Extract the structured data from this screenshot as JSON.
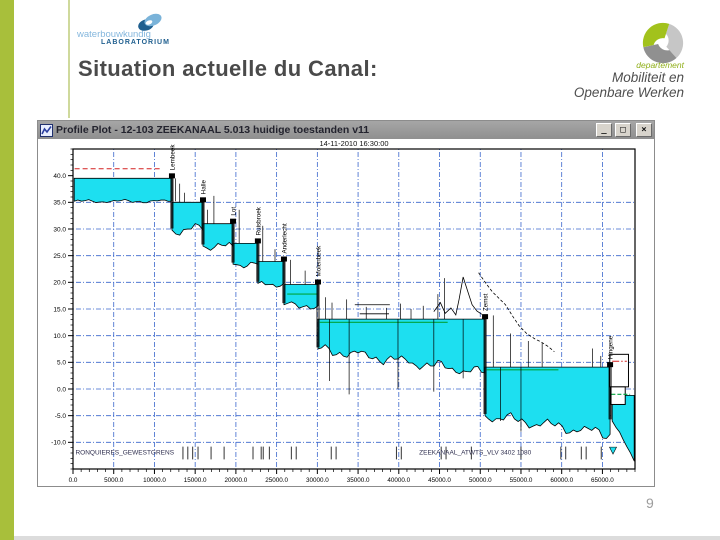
{
  "slide": {
    "title": "Situation actuelle du Canal:",
    "page_number": "9",
    "accent_color": "#a8bf3b"
  },
  "logo_left": {
    "line1": "waterbouwkundig",
    "line2": "LABORATORIUM"
  },
  "logo_right": {
    "line1": "departement",
    "line2": "Mobiliteit en",
    "line3": "Openbare Werken"
  },
  "window": {
    "title": "Profile Plot - 12-103 ZEEKANAAL 5.013 huidige toestanden v11",
    "buttons": {
      "minimize": "_",
      "maximize": "□",
      "close": "×"
    }
  },
  "chart_data": {
    "type": "area",
    "title": "14-11-2010 16:30:00",
    "xlabel": "",
    "ylabel": "",
    "x_range": [
      0,
      69000
    ],
    "y_range": [
      -15,
      45
    ],
    "x_ticks": [
      0,
      5000,
      10000,
      15000,
      20000,
      25000,
      30000,
      35000,
      40000,
      45000,
      50000,
      55000,
      60000,
      65000
    ],
    "y_ticks": [
      40,
      35,
      30,
      25,
      20,
      15,
      10,
      5,
      0,
      -5,
      -10
    ],
    "grid": true,
    "colors": {
      "water": "#1ddff0",
      "grid": "#3a66cc",
      "red": "#d42020",
      "green": "#00a33c",
      "labels": "#2e2e4e"
    },
    "reaches": [
      {
        "x1": 150,
        "x2": 12150,
        "surface": 39.5,
        "bed1": 35.2,
        "bed2": 35.2,
        "rough": 0.4
      },
      {
        "x1": 12150,
        "x2": 15960,
        "surface": 35.0,
        "bed1": 29.8,
        "bed2": 29.8,
        "rough": 1.4
      },
      {
        "x1": 15960,
        "x2": 19650,
        "surface": 31.0,
        "bed1": 26.8,
        "bed2": 26.8,
        "rough": 1.0
      },
      {
        "x1": 19650,
        "x2": 22700,
        "surface": 27.3,
        "bed1": 23.4,
        "bed2": 23.4,
        "rough": 0.8
      },
      {
        "x1": 22700,
        "x2": 25900,
        "surface": 23.9,
        "bed1": 19.8,
        "bed2": 19.8,
        "rough": 0.9
      },
      {
        "x1": 25900,
        "x2": 30080,
        "surface": 19.6,
        "bed1": 15.8,
        "bed2": 15.6,
        "rough": 1.0
      },
      {
        "x1": 30080,
        "x2": 50590,
        "surface": 13.1,
        "bed1": 7.5,
        "bed2": 3.0,
        "rough": 1.3
      },
      {
        "x1": 50590,
        "x2": 65940,
        "surface": 4.1,
        "bed1": -5.0,
        "bed2": -8.5,
        "rough": 1.4
      },
      {
        "x1": 66200,
        "x2": 68900,
        "surface": -1.2,
        "bed1": -6.0,
        "bed2": -13.5,
        "rough": 0.6
      }
    ],
    "locks": [
      {
        "x": 12150,
        "label": "Lembeek"
      },
      {
        "x": 15960,
        "label": "Halle"
      },
      {
        "x": 19650,
        "label": "Lot"
      },
      {
        "x": 22700,
        "label": "Ruisbroek"
      },
      {
        "x": 25900,
        "label": "Anderlecht"
      },
      {
        "x": 30080,
        "label": "Molenbeek"
      },
      {
        "x": 50590,
        "label": "Zemst"
      },
      {
        "x": 65940,
        "label": "Hingene"
      }
    ],
    "red_lines": [
      {
        "x1": 200,
        "x2": 10700,
        "y": 41.3,
        "dash": "5,3"
      },
      {
        "x1": 66200,
        "x2": 68000,
        "y": 5.2,
        "dash": "7,2,1.5,2"
      }
    ],
    "green_lines": [
      {
        "x1": 26300,
        "x2": 30000,
        "y": 17.8
      },
      {
        "x1": 30300,
        "x2": 46000,
        "y": 12.5
      },
      {
        "x1": 50800,
        "x2": 59600,
        "y": 3.6
      },
      {
        "x1": 66100,
        "x2": 68400,
        "y": -1.0,
        "dash": "4,2"
      }
    ],
    "boxes": [
      {
        "x1": 65900,
        "x2": 68200,
        "y1": 6.5,
        "y2": 0.4
      },
      {
        "x1": 66000,
        "x2": 67800,
        "y1": 0.4,
        "y2": -2.9
      }
    ],
    "spikes": [
      {
        "x": 12600,
        "y1": 39.5,
        "y2": 35.2
      },
      {
        "x": 13100,
        "y1": 38.5,
        "y2": 35.0
      },
      {
        "x": 13700,
        "y1": 36.8,
        "y2": 35.0
      },
      {
        "x": 16500,
        "y1": 33.6,
        "y2": 31.0
      },
      {
        "x": 17300,
        "y1": 36.2,
        "y2": 31.0
      },
      {
        "x": 20400,
        "y1": 33.6,
        "y2": 27.3
      },
      {
        "x": 23300,
        "y1": 30.6,
        "y2": 23.9
      },
      {
        "x": 24800,
        "y1": 26.2,
        "y2": 23.9
      },
      {
        "x": 26700,
        "y1": 24.2,
        "y2": 19.6
      },
      {
        "x": 28500,
        "y1": 22.2,
        "y2": 19.6
      },
      {
        "x": 31000,
        "y1": 17.2,
        "y2": 13.1
      },
      {
        "x": 31800,
        "y1": 16.2,
        "y2": 13.1
      },
      {
        "x": 33600,
        "y1": 16.8,
        "y2": 13.1
      },
      {
        "x": 36000,
        "y1": 15.4,
        "y2": 13.1
      },
      {
        "x": 38500,
        "y1": 15.2,
        "y2": 13.1
      },
      {
        "x": 40200,
        "y1": 16.0,
        "y2": 13.1
      },
      {
        "x": 41500,
        "y1": 15.0,
        "y2": 13.1
      },
      {
        "x": 43000,
        "y1": 15.6,
        "y2": 13.1
      },
      {
        "x": 44800,
        "y1": 17.8,
        "y2": 13.1
      },
      {
        "x": 45600,
        "y1": 20.8,
        "y2": 13.1
      },
      {
        "x": 51600,
        "y1": 13.8,
        "y2": 4.1
      },
      {
        "x": 53700,
        "y1": 10.4,
        "y2": 4.1
      },
      {
        "x": 55900,
        "y1": 9.0,
        "y2": 4.1
      },
      {
        "x": 57600,
        "y1": 8.6,
        "y2": 4.1
      },
      {
        "x": 63800,
        "y1": 7.6,
        "y2": 4.1
      },
      {
        "x": 64800,
        "y1": 6.2,
        "y2": 4.1
      }
    ],
    "terrain": [
      [
        [
          34600,
          15.8
        ],
        [
          38900,
          15.8
        ]
      ],
      [
        [
          35200,
          14.1
        ],
        [
          38800,
          14.1
        ]
      ],
      [
        [
          44300,
          14.5
        ],
        [
          45100,
          16.2
        ],
        [
          45700,
          14.2
        ],
        [
          46400,
          15.2
        ],
        [
          47000,
          13.9
        ],
        [
          47400,
          16.8
        ],
        [
          47900,
          21.0
        ],
        [
          48400,
          18.6
        ],
        [
          49000,
          15.8
        ],
        [
          49600,
          14.6
        ],
        [
          50200,
          14.0
        ]
      ]
    ],
    "terrain_dashed": [
      [
        [
          49800,
          21.8
        ],
        [
          50700,
          19.8
        ],
        [
          51500,
          18.2
        ],
        [
          52300,
          17.0
        ],
        [
          53100,
          15.8
        ],
        [
          54000,
          13.6
        ],
        [
          54800,
          11.8
        ],
        [
          55700,
          10.4
        ],
        [
          56700,
          9.4
        ],
        [
          57500,
          8.8
        ],
        [
          58300,
          8.0
        ],
        [
          59100,
          7.0
        ]
      ]
    ],
    "verticals": [
      {
        "x": 31500,
        "y1": 13.1,
        "y2": 1.5
      },
      {
        "x": 33900,
        "y1": 13.1,
        "y2": -1.0
      },
      {
        "x": 39900,
        "y1": 13.1,
        "y2": 0.0
      },
      {
        "x": 44300,
        "y1": 13.1,
        "y2": -0.5
      },
      {
        "x": 47900,
        "y1": 13.1,
        "y2": 2.0
      },
      {
        "x": 52500,
        "y1": 4.1,
        "y2": -6.0
      },
      {
        "x": 55000,
        "y1": 4.1,
        "y2": -8.0
      }
    ],
    "station_markers": [
      13500,
      14100,
      14700,
      15350,
      16950,
      18550,
      22100,
      23100,
      23350,
      24100,
      26800,
      27400,
      31700,
      32300,
      39700,
      40300,
      45200,
      45800,
      48900,
      55000,
      59900,
      60500,
      62400,
      63000,
      64850
    ],
    "section_labels": [
      {
        "x": 300,
        "text": "RONQUIERES_GEWESTGRENS"
      },
      {
        "x": 42500,
        "text": "ZEEKANAAL_ATWTS_VLV 3402 1080"
      }
    ],
    "marker_triangle": {
      "x": 66300,
      "y": -10.9
    }
  }
}
